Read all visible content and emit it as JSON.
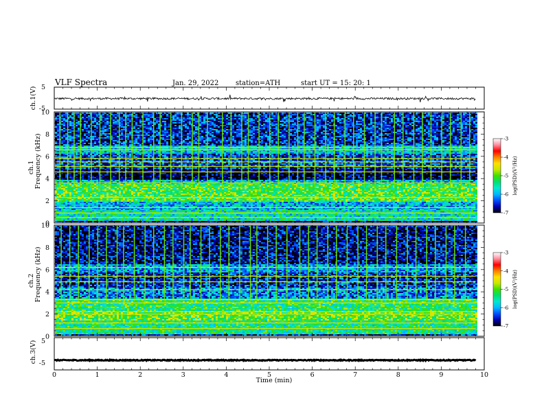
{
  "header": {
    "title": "VLF  Spectra",
    "date": "Jan. 29, 2022",
    "station": "station=ATH",
    "start": "start  UT  =    15: 20: 1"
  },
  "chart_data": [
    {
      "type": "line",
      "name": "ch1-waveform",
      "ylabel": "ch.1(V)",
      "xlim": [
        0,
        10
      ],
      "ylim": [
        -5,
        5
      ],
      "yticks": [
        "5",
        "-5"
      ],
      "signal": {
        "mean": -0.2,
        "noise": 0.45,
        "end": 9.8
      }
    },
    {
      "type": "heatmap",
      "name": "ch1-spectrogram",
      "ylabel_top": "ch.1",
      "ylabel": "Frequency  (kHz)",
      "xlim": [
        0,
        9.8
      ],
      "ylim": [
        0,
        10
      ],
      "yticks": [
        "0",
        "2",
        "4",
        "6",
        "8",
        "10"
      ],
      "bands_khz": [
        {
          "f0": 0.0,
          "f1": 0.3,
          "level": -6.8
        },
        {
          "f0": 0.3,
          "f1": 1.2,
          "level": -5.6
        },
        {
          "f0": 1.2,
          "f1": 2.0,
          "level": -5.9
        },
        {
          "f0": 2.0,
          "f1": 3.6,
          "level": -5.1
        },
        {
          "f0": 3.6,
          "f1": 4.0,
          "level": -5.9
        },
        {
          "f0": 4.0,
          "f1": 5.0,
          "level": -6.9
        },
        {
          "f0": 5.0,
          "f1": 6.3,
          "level": -6.4
        },
        {
          "f0": 6.3,
          "f1": 7.0,
          "level": -5.8
        },
        {
          "f0": 7.0,
          "f1": 10.0,
          "level": -6.5
        }
      ],
      "lines_khz": [
        0.5,
        0.9,
        1.4,
        2.3,
        3.6,
        4.6,
        5.1,
        5.5,
        5.8,
        6.6,
        6.8
      ],
      "sferics_min": [
        0.12,
        0.3,
        0.45,
        0.6,
        0.85,
        1.05,
        1.3,
        1.5,
        1.65,
        1.8,
        2.05,
        2.3,
        2.45,
        2.7,
        2.95,
        3.2,
        3.35,
        3.55,
        3.9,
        4.1,
        4.35,
        4.5,
        4.75,
        5.0,
        5.2,
        5.45,
        5.65,
        5.8,
        6.05,
        6.3,
        6.5,
        6.75,
        6.95,
        7.2,
        7.45,
        7.6,
        7.9,
        8.1,
        8.35,
        8.55,
        8.75,
        9.0,
        9.2,
        9.45,
        9.65
      ]
    },
    {
      "type": "heatmap",
      "name": "ch2-spectrogram",
      "ylabel_top": "ch.2",
      "ylabel": "Frequency  (kHz)",
      "xlim": [
        0,
        9.8
      ],
      "ylim": [
        0,
        10
      ],
      "yticks": [
        "0",
        "2",
        "4",
        "6",
        "8",
        "10"
      ],
      "bands_khz": [
        {
          "f0": 0.0,
          "f1": 0.3,
          "level": -6.6
        },
        {
          "f0": 0.3,
          "f1": 1.5,
          "level": -5.4
        },
        {
          "f0": 1.5,
          "f1": 2.4,
          "level": -5.0
        },
        {
          "f0": 2.4,
          "f1": 3.5,
          "level": -5.3
        },
        {
          "f0": 3.5,
          "f1": 4.4,
          "level": -6.2
        },
        {
          "f0": 4.4,
          "f1": 5.8,
          "level": -6.5
        },
        {
          "f0": 5.8,
          "f1": 6.5,
          "level": -6.0
        },
        {
          "f0": 6.5,
          "f1": 10.0,
          "level": -6.7
        }
      ],
      "lines_khz": [
        0.7,
        1.2,
        2.0,
        2.2,
        3.0,
        3.3,
        4.2,
        4.9,
        5.4,
        6.2
      ],
      "sferics_min": [
        0.15,
        0.35,
        0.55,
        0.8,
        1.0,
        1.2,
        1.45,
        1.6,
        1.85,
        2.1,
        2.3,
        2.55,
        2.75,
        3.0,
        3.15,
        3.4,
        3.6,
        3.85,
        4.05,
        4.3,
        4.55,
        4.7,
        4.95,
        5.15,
        5.4,
        5.7,
        5.9,
        6.1,
        6.35,
        6.55,
        6.8,
        7.05,
        7.25,
        7.5,
        7.7,
        7.95,
        8.2,
        8.4,
        8.65,
        8.85,
        9.1,
        9.3,
        9.55
      ]
    },
    {
      "type": "line",
      "name": "ch3-waveform",
      "ylabel": "ch.3(V)",
      "xlabel": "Time  (min)",
      "xlim": [
        0,
        10
      ],
      "ylim": [
        -5,
        5
      ],
      "yticks": [
        "5",
        "-5"
      ],
      "xticks": [
        "0",
        "1",
        "2",
        "3",
        "4",
        "5",
        "6",
        "7",
        "8",
        "9",
        "10"
      ],
      "signal": {
        "mean": -2.0,
        "noise": 0.15,
        "end": 9.8
      }
    }
  ],
  "colorbar": {
    "label": "log(PSD)(V²/Hz)",
    "ticks": [
      "-3",
      "-4",
      "-5",
      "-6",
      "-7"
    ],
    "range": [
      -7,
      -3
    ],
    "colors": [
      "#000000",
      "#0000b0",
      "#0050ff",
      "#00b8ff",
      "#00e8d0",
      "#00e070",
      "#40e000",
      "#c8e800",
      "#ffe000",
      "#ff8000",
      "#ff0000",
      "#ff90a0",
      "#ffffff"
    ]
  }
}
